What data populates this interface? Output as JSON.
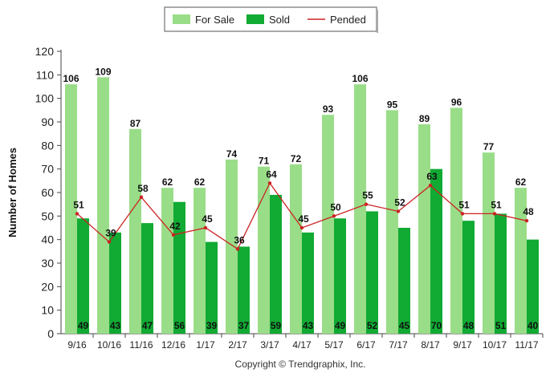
{
  "chart_data": {
    "type": "bar",
    "categories": [
      "9/16",
      "10/16",
      "11/16",
      "12/16",
      "1/17",
      "2/17",
      "3/17",
      "4/17",
      "5/17",
      "6/17",
      "7/17",
      "8/17",
      "9/17",
      "10/17",
      "11/17"
    ],
    "series": [
      {
        "name": "For Sale",
        "type": "bar",
        "color": "#99dd88",
        "values": [
          106,
          109,
          87,
          62,
          62,
          74,
          71,
          72,
          93,
          106,
          95,
          89,
          96,
          77,
          62
        ]
      },
      {
        "name": "Sold",
        "type": "bar",
        "color": "#11aa33",
        "values": [
          49,
          43,
          47,
          56,
          39,
          37,
          59,
          43,
          49,
          52,
          45,
          70,
          48,
          51,
          40
        ]
      },
      {
        "name": "Pended",
        "type": "line",
        "color": "#cc2222",
        "values": [
          51,
          39,
          58,
          42,
          45,
          36,
          64,
          45,
          50,
          55,
          52,
          63,
          51,
          51,
          48
        ]
      }
    ],
    "ylabel": "Number of Homes",
    "ylim": [
      0,
      120
    ],
    "yticks": [
      0,
      10,
      20,
      30,
      40,
      50,
      60,
      70,
      80,
      90,
      100,
      110,
      120
    ],
    "legend_position": "top-center",
    "grid": false
  },
  "copyright": "Copyright © Trendgraphix, Inc."
}
